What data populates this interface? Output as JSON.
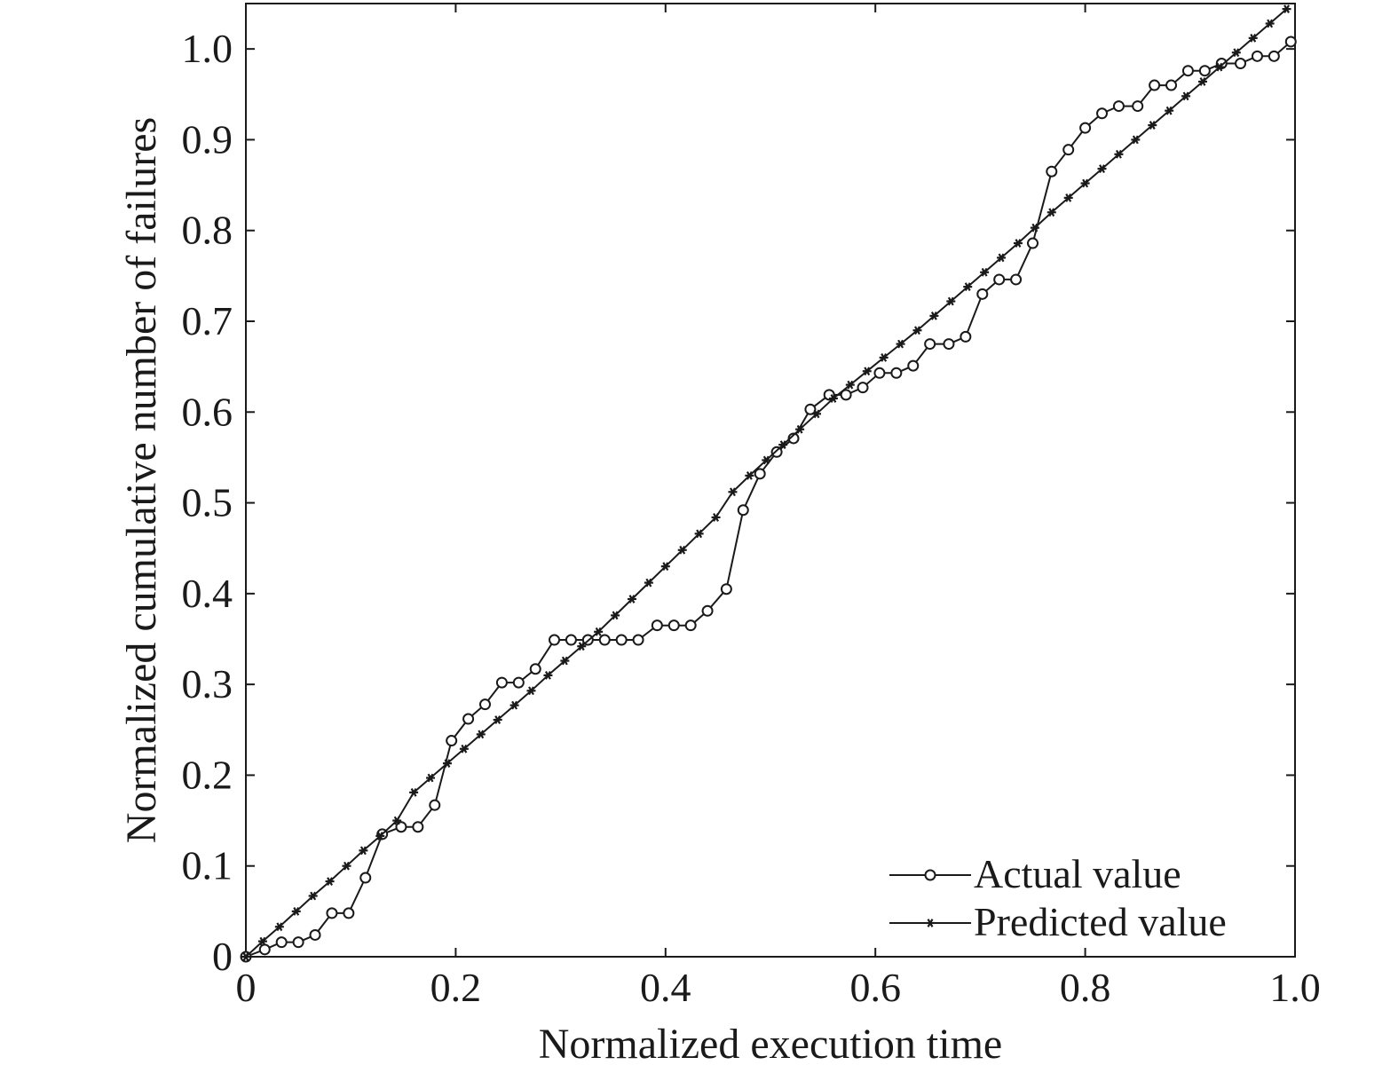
{
  "chart_data": {
    "type": "line",
    "title": "",
    "xlabel": "Normalized execution time",
    "ylabel": "Normalized cumulative number of failures",
    "xlim": [
      0,
      1.0
    ],
    "ylim": [
      0,
      1.05
    ],
    "grid": false,
    "legend_position": "bottom-right",
    "xticks": [
      {
        "value": 0,
        "label": "0"
      },
      {
        "value": 0.2,
        "label": "0.2"
      },
      {
        "value": 0.4,
        "label": "0.4"
      },
      {
        "value": 0.6,
        "label": "0.6"
      },
      {
        "value": 0.8,
        "label": "0.8"
      },
      {
        "value": 1.0,
        "label": "1.0"
      }
    ],
    "yticks": [
      {
        "value": 0,
        "label": "0"
      },
      {
        "value": 0.1,
        "label": "0.1"
      },
      {
        "value": 0.2,
        "label": "0.2"
      },
      {
        "value": 0.3,
        "label": "0.3"
      },
      {
        "value": 0.4,
        "label": "0.4"
      },
      {
        "value": 0.5,
        "label": "0.5"
      },
      {
        "value": 0.6,
        "label": "0.6"
      },
      {
        "value": 0.7,
        "label": "0.7"
      },
      {
        "value": 0.8,
        "label": "0.8"
      },
      {
        "value": 0.9,
        "label": "0.9"
      },
      {
        "value": 1.0,
        "label": "1.0"
      }
    ],
    "series": [
      {
        "name": "Actual value",
        "marker": "circle",
        "color": "#1a1a1a",
        "x": [
          0,
          0.018,
          0.034,
          0.05,
          0.066,
          0.082,
          0.098,
          0.114,
          0.13,
          0.148,
          0.164,
          0.18,
          0.196,
          0.212,
          0.228,
          0.244,
          0.26,
          0.276,
          0.294,
          0.31,
          0.326,
          0.342,
          0.358,
          0.374,
          0.392,
          0.408,
          0.424,
          0.44,
          0.458,
          0.474,
          0.49,
          0.506,
          0.522,
          0.538,
          0.556,
          0.572,
          0.588,
          0.604,
          0.62,
          0.636,
          0.652,
          0.67,
          0.686,
          0.702,
          0.718,
          0.734,
          0.75,
          0.768,
          0.784,
          0.8,
          0.816,
          0.832,
          0.85,
          0.866,
          0.882,
          0.898,
          0.914,
          0.93,
          0.948,
          0.964,
          0.98,
          0.996
        ],
        "y": [
          0,
          0.008,
          0.016,
          0.016,
          0.024,
          0.048,
          0.048,
          0.087,
          0.135,
          0.143,
          0.143,
          0.167,
          0.238,
          0.262,
          0.278,
          0.302,
          0.302,
          0.317,
          0.349,
          0.349,
          0.349,
          0.349,
          0.349,
          0.349,
          0.365,
          0.365,
          0.365,
          0.381,
          0.405,
          0.492,
          0.532,
          0.556,
          0.571,
          0.603,
          0.619,
          0.619,
          0.627,
          0.643,
          0.643,
          0.651,
          0.675,
          0.675,
          0.683,
          0.73,
          0.746,
          0.746,
          0.786,
          0.865,
          0.889,
          0.913,
          0.929,
          0.937,
          0.937,
          0.96,
          0.96,
          0.976,
          0.976,
          0.984,
          0.984,
          0.992,
          0.992,
          1.008
        ]
      },
      {
        "name": "Predicted value",
        "marker": "star",
        "color": "#1a1a1a",
        "x": [
          0,
          0.016,
          0.032,
          0.048,
          0.064,
          0.08,
          0.096,
          0.112,
          0.128,
          0.144,
          0.16,
          0.176,
          0.192,
          0.208,
          0.224,
          0.24,
          0.256,
          0.272,
          0.288,
          0.304,
          0.32,
          0.336,
          0.352,
          0.368,
          0.384,
          0.4,
          0.416,
          0.432,
          0.448,
          0.464,
          0.48,
          0.496,
          0.512,
          0.528,
          0.544,
          0.56,
          0.576,
          0.592,
          0.608,
          0.624,
          0.64,
          0.656,
          0.672,
          0.688,
          0.704,
          0.72,
          0.736,
          0.752,
          0.768,
          0.784,
          0.8,
          0.816,
          0.832,
          0.848,
          0.864,
          0.88,
          0.896,
          0.912,
          0.928,
          0.944,
          0.96,
          0.976,
          0.992
        ],
        "y": [
          0,
          0.017,
          0.033,
          0.05,
          0.067,
          0.083,
          0.1,
          0.117,
          0.133,
          0.15,
          0.181,
          0.197,
          0.213,
          0.229,
          0.245,
          0.261,
          0.277,
          0.293,
          0.31,
          0.326,
          0.342,
          0.358,
          0.376,
          0.394,
          0.412,
          0.43,
          0.448,
          0.466,
          0.484,
          0.512,
          0.53,
          0.547,
          0.564,
          0.581,
          0.598,
          0.615,
          0.63,
          0.645,
          0.66,
          0.675,
          0.69,
          0.706,
          0.722,
          0.738,
          0.754,
          0.77,
          0.786,
          0.803,
          0.82,
          0.836,
          0.852,
          0.868,
          0.884,
          0.9,
          0.916,
          0.932,
          0.948,
          0.964,
          0.98,
          0.996,
          1.012,
          1.028,
          1.044
        ]
      }
    ]
  }
}
